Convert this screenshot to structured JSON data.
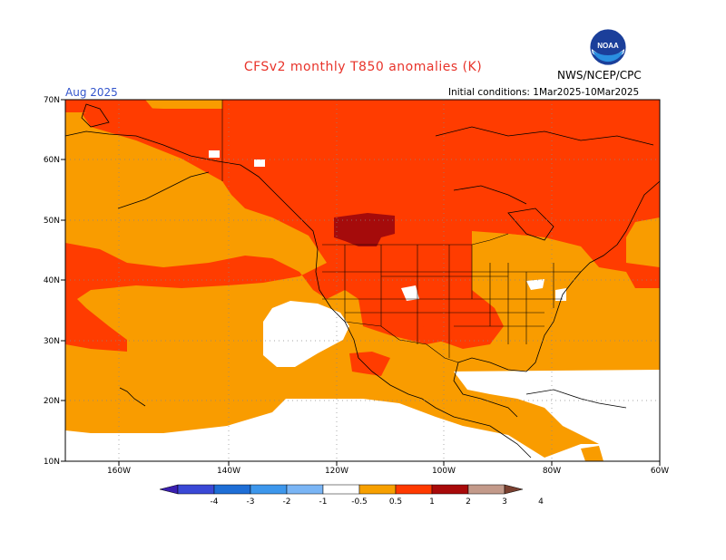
{
  "header": {
    "title": "CFSv2 monthly T850 anomalies (K)",
    "agency": "NWS/NCEP/CPC",
    "period": "Aug 2025",
    "initial_conditions": "Initial conditions: 1Mar2025-10Mar2025",
    "logo_text": "NOAA"
  },
  "axes": {
    "lat_labels": [
      "70N",
      "60N",
      "50N",
      "40N",
      "30N",
      "20N",
      "10N"
    ],
    "lon_labels": [
      "160W",
      "140W",
      "120W",
      "100W",
      "80W",
      "60W"
    ]
  },
  "colorbar": {
    "tick_labels": [
      "-4",
      "-3",
      "-2",
      "-1",
      "-0.5",
      "0.5",
      "1",
      "2",
      "3",
      "4"
    ],
    "colors": [
      "#3a1fb0",
      "#3a48d6",
      "#1e6ed6",
      "#3d97ec",
      "#7ab5f5",
      "#ffffff",
      "#f7a000",
      "#ff3a00",
      "#a80a0a",
      "#c39a8a",
      "#7a4030"
    ]
  },
  "map_colors": {
    "white": "#ffffff",
    "orange": "#f99c00",
    "red_orange": "#ff3c00",
    "dark_red": "#a50b0b",
    "coast": "#000000"
  }
}
